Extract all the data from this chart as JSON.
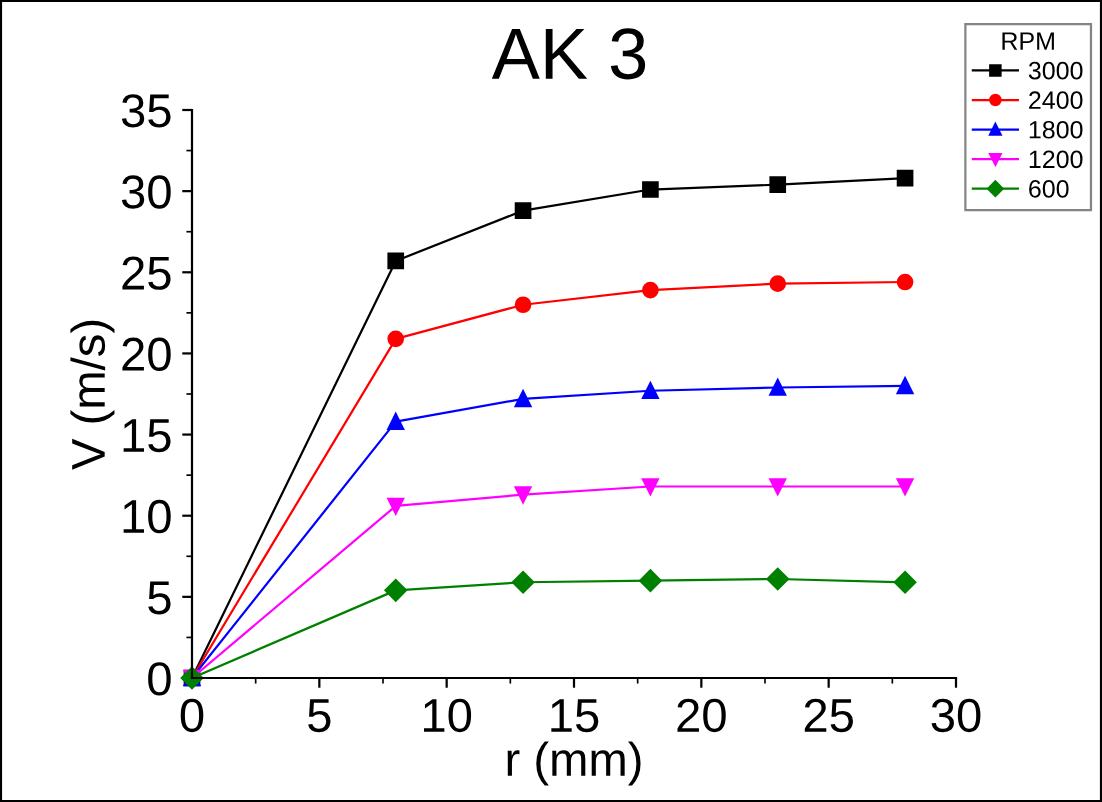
{
  "chart_data": {
    "type": "line",
    "title": "AK 3",
    "xlabel": "r (mm)",
    "ylabel": "V (m/s)",
    "legend_title": "RPM",
    "legend": "top right",
    "x": [
      0,
      8,
      13,
      18,
      23,
      28
    ],
    "xlim": [
      0,
      30
    ],
    "xticks": [
      0,
      5,
      10,
      15,
      20,
      25,
      30
    ],
    "ylim": [
      0,
      35
    ],
    "yticks": [
      0,
      5,
      10,
      15,
      20,
      25,
      30,
      35
    ],
    "grid": false,
    "series": [
      {
        "name": "3000",
        "color": "#000000",
        "marker": "square",
        "values": [
          0,
          25.7,
          28.8,
          30.1,
          30.4,
          30.8
        ]
      },
      {
        "name": "2400",
        "color": "#ff0000",
        "marker": "circle",
        "values": [
          0,
          20.9,
          23.0,
          23.9,
          24.3,
          24.4
        ]
      },
      {
        "name": "1800",
        "color": "#0000ff",
        "marker": "triangle",
        "values": [
          0,
          15.8,
          17.2,
          17.7,
          17.9,
          18.0
        ]
      },
      {
        "name": "1200",
        "color": "#ff00ff",
        "marker": "triangle_down",
        "values": [
          0,
          10.6,
          11.3,
          11.8,
          11.8,
          11.8
        ]
      },
      {
        "name": "600",
        "color": "#008000",
        "marker": "diamond",
        "values": [
          0,
          5.4,
          5.9,
          6.0,
          6.1,
          5.9
        ]
      }
    ]
  }
}
